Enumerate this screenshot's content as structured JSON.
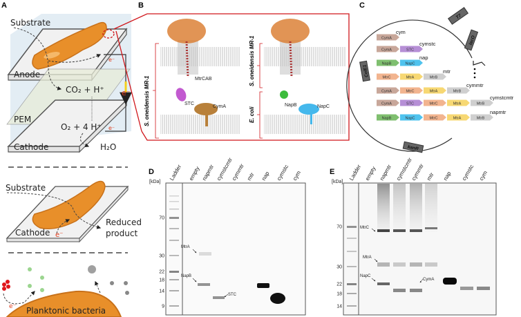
{
  "panels": {
    "a": {
      "label": "A",
      "mfc": {
        "substrate": "Substrate",
        "anode": "Anode",
        "co2": "CO₂ + H⁺",
        "pem": "PEM",
        "o2": "O₂ + 4 H⁺",
        "cathode": "Cathode",
        "h2o": "H₂O",
        "electron": "e⁻"
      },
      "electrosynthesis": {
        "substrate": "Substrate",
        "cathode": "Cathode",
        "electron": "e⁻",
        "product_line1": "Reduced",
        "product_line2": "product"
      },
      "planktonic": {
        "label": "Planktonic bacteria",
        "electron": "e⁻"
      }
    },
    "b": {
      "label": "B",
      "left_organism": "S. oneidensis MR-1",
      "right_top_organism": "S. oneidensis MR-1",
      "right_bottom_organism": "E. coli",
      "proteins": {
        "mtrcab": "MtrCAB",
        "stc": "STC",
        "cyma": "CymA",
        "napb": "NapB",
        "napc": "NapC"
      }
    },
    "c": {
      "label": "C",
      "backbone": [
        "T7",
        "lacO",
        "ColE1",
        "kanR"
      ],
      "constructs": [
        {
          "name": "cym",
          "genes": [
            "CymA"
          ]
        },
        {
          "name": "cymstc",
          "genes": [
            "CymA",
            "STC"
          ]
        },
        {
          "name": "nap",
          "genes": [
            "NapB",
            "NapC"
          ]
        },
        {
          "name": "mtr",
          "genes": [
            "MtrC",
            "MtrA",
            "MtrB"
          ]
        },
        {
          "name": "cymmtr",
          "genes": [
            "CymA",
            "MtrC",
            "MtrA",
            "MtrB"
          ]
        },
        {
          "name": "cymstcmtr",
          "genes": [
            "CymA",
            "STC",
            "MtrC",
            "MtrA",
            "MtrB"
          ]
        },
        {
          "name": "napmtr",
          "genes": [
            "NapB",
            "NapC",
            "MtrC",
            "MtrA",
            "MtrB"
          ]
        }
      ],
      "gene_colors": {
        "CymA": "#c8a79a",
        "STC": "#b68fd6",
        "NapB": "#7fbf6f",
        "NapC": "#4fc3ee",
        "MtrC": "#f2b48f",
        "MtrA": "#f7d873",
        "MtrB": "#cfcfcf"
      }
    },
    "d": {
      "label": "D",
      "unit": "[kDa]",
      "lanes": [
        "Ladder",
        "empty",
        "napmtr",
        "cymstcmtr",
        "cymmtr",
        "mtr",
        "nap",
        "cymstc",
        "cym"
      ],
      "markers": [
        "70",
        "30",
        "22",
        "18",
        "14",
        "9"
      ],
      "annotations": [
        "MtrA",
        "NapB",
        "STC"
      ]
    },
    "e": {
      "label": "E",
      "unit": "[kDa]",
      "lanes": [
        "Ladder",
        "empty",
        "napmtr",
        "cymstcmtr",
        "cymmtr",
        "mtr",
        "nap",
        "cymstc",
        "cym"
      ],
      "markers": [
        "70",
        "30",
        "22",
        "18",
        "14"
      ],
      "annotations": [
        "MtrC",
        "MtrA",
        "NapC",
        "CymA"
      ]
    }
  }
}
